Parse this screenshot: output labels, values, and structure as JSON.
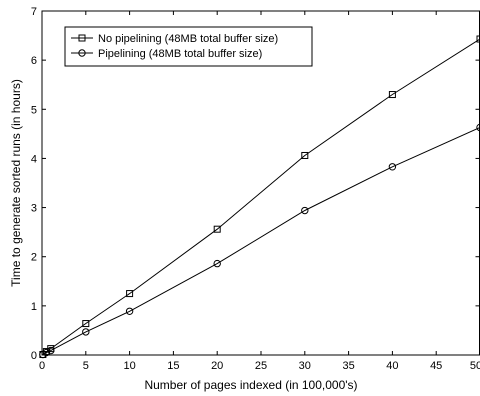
{
  "chart_data": {
    "type": "line",
    "title": "",
    "xlabel": "Number of pages indexed (in 100,000's)",
    "ylabel": "Time to generate sorted runs (in hours)",
    "xlim": [
      0,
      50
    ],
    "ylim": [
      0,
      7
    ],
    "xticks": [
      0,
      5,
      10,
      15,
      20,
      25,
      30,
      35,
      40,
      45,
      50
    ],
    "yticks": [
      0,
      1,
      2,
      3,
      4,
      5,
      6,
      7
    ],
    "grid": false,
    "legend_position": "top-left",
    "series": [
      {
        "name": "No pipelining (48MB total buffer size)",
        "marker": "square",
        "color": "#000000",
        "x": [
          0.1,
          0.5,
          1,
          5,
          10,
          20,
          30,
          40,
          50
        ],
        "y": [
          0.01,
          0.07,
          0.13,
          0.64,
          1.25,
          2.56,
          4.06,
          5.3,
          6.43
        ]
      },
      {
        "name": "Pipelining (48MB total buffer size)",
        "marker": "circle",
        "color": "#000000",
        "x": [
          0.1,
          0.5,
          1,
          5,
          10,
          20,
          30,
          40,
          50
        ],
        "y": [
          0.01,
          0.05,
          0.09,
          0.47,
          0.89,
          1.86,
          2.94,
          3.83,
          4.63
        ]
      }
    ]
  }
}
